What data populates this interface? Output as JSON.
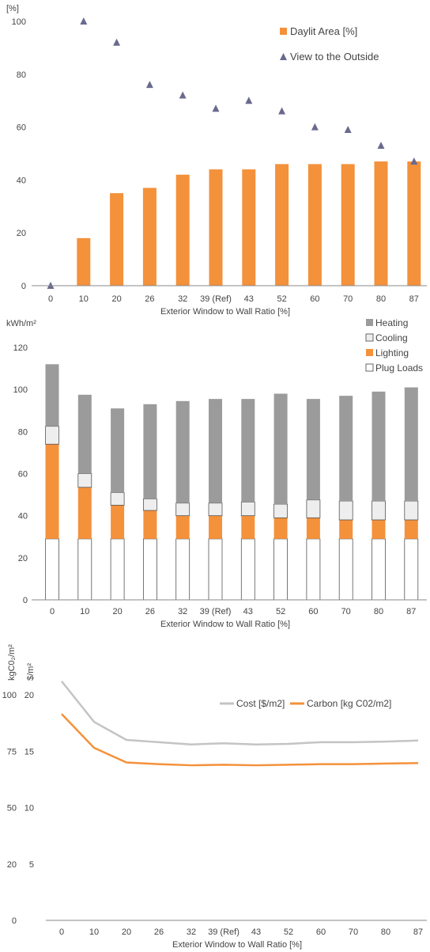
{
  "chart_data": [
    {
      "type": "bar",
      "categories": [
        "0",
        "10",
        "20",
        "26",
        "32",
        "39 (Ref)",
        "43",
        "52",
        "60",
        "70",
        "80",
        "87"
      ],
      "ylabel": "[%]",
      "xlabel": "Exterior Window to Wall Ratio [%]",
      "ylim": [
        0,
        100
      ],
      "yticks": [
        0,
        20,
        40,
        60,
        80,
        100
      ],
      "legend_position": "top-right",
      "series": [
        {
          "name": "Daylit Area [%]",
          "type": "bar",
          "color": "#f4913b",
          "values": [
            0,
            18,
            35,
            37,
            42,
            44,
            44,
            46,
            46,
            46,
            47,
            47
          ]
        },
        {
          "name": "View to the Outside",
          "type": "scatter",
          "marker": "triangle",
          "color": "#6a6a8e",
          "values": [
            0,
            100,
            92,
            76,
            72,
            67,
            70,
            66,
            60,
            59,
            53,
            47
          ]
        }
      ]
    },
    {
      "type": "bar",
      "stacked": true,
      "categories": [
        "0",
        "10",
        "20",
        "26",
        "32",
        "39 (Ref)",
        "43",
        "52",
        "60",
        "70",
        "80",
        "87"
      ],
      "ylabel": "kWh/m²",
      "xlabel": "Exterior Window to Wall Ratio [%]",
      "ylim": [
        0,
        120
      ],
      "yticks": [
        0,
        20,
        40,
        60,
        80,
        100,
        120
      ],
      "legend_position": "top-right",
      "series": [
        {
          "name": "Plug Loads",
          "color": "#ffffff",
          "values": [
            29,
            29,
            29,
            29,
            29,
            29,
            29,
            29,
            29,
            29,
            29,
            29
          ]
        },
        {
          "name": "Lighting",
          "color": "#f4913b",
          "values": [
            45,
            24.5,
            16,
            13.5,
            11,
            11,
            11,
            10,
            10,
            9,
            9,
            9
          ]
        },
        {
          "name": "Cooling",
          "color": "#eeeeee",
          "values": [
            8.5,
            6.5,
            6,
            5.5,
            6,
            6,
            6.5,
            6.5,
            8.5,
            9,
            9,
            9
          ]
        },
        {
          "name": "Heating",
          "color": "#9b9b9b",
          "values": [
            29.5,
            37.5,
            40,
            45,
            48.5,
            49.5,
            49,
            52.5,
            48,
            50,
            52,
            54
          ]
        }
      ],
      "legend_order": [
        "Heating",
        "Cooling",
        "Lighting",
        "Plug Loads"
      ]
    },
    {
      "type": "line",
      "categories": [
        "0",
        "10",
        "20",
        "26",
        "32",
        "39 (Ref)",
        "43",
        "52",
        "60",
        "70",
        "80",
        "87"
      ],
      "xlabel": "Exterior Window to Wall Ratio [%]",
      "ylabel_left": "kgC0₂/m²",
      "ylabel_right": "$/m²",
      "yticks_carbon": [
        0,
        20,
        50,
        75,
        100
      ],
      "yticks_cost": [
        5,
        10,
        15,
        20
      ],
      "ylim_cost": [
        0,
        22
      ],
      "legend_position": "top-right",
      "series": [
        {
          "name": "Cost [$/m2]",
          "color": "#c4c4c4",
          "values": [
            21.2,
            17.6,
            16.0,
            15.8,
            15.6,
            15.7,
            15.6,
            15.65,
            15.8,
            15.8,
            15.85,
            15.95
          ]
        },
        {
          "name": "Carbon [kg C02/m2]",
          "color": "#f4913b",
          "values": [
            18.3,
            15.3,
            14.0,
            13.85,
            13.75,
            13.8,
            13.75,
            13.8,
            13.85,
            13.85,
            13.9,
            13.95
          ]
        }
      ]
    }
  ]
}
